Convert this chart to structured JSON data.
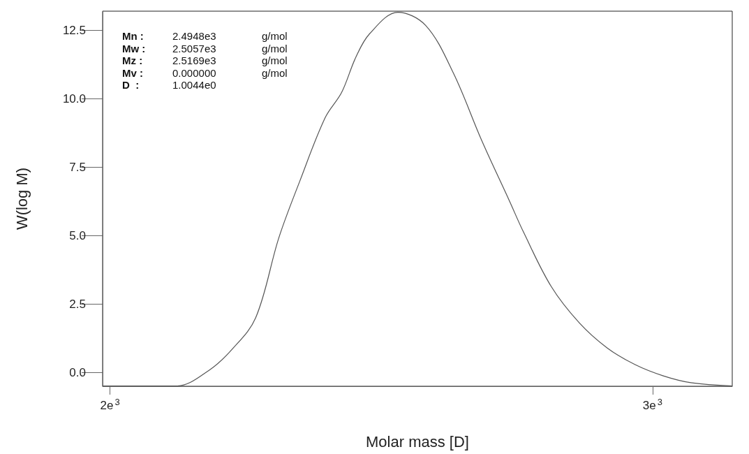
{
  "chart_data": {
    "type": "line",
    "xlabel": "Molar mass [D]",
    "ylabel": "W(log M)",
    "log": "x",
    "x": [
      1989,
      2044,
      2102,
      2154,
      2191,
      2230,
      2269,
      2305,
      2349,
      2378,
      2403,
      2428,
      2480,
      2532,
      2585,
      2640,
      2696,
      2724,
      2781,
      2840,
      2900,
      2961,
      3024,
      3087,
      3184
    ],
    "series": [
      {
        "color": "#555555",
        "values": [
          -0.5,
          -0.5,
          -0.5,
          0.08,
          0.84,
          1.99,
          4.92,
          7.0,
          9.31,
          10.23,
          11.5,
          12.37,
          13.16,
          12.68,
          10.94,
          8.49,
          6.25,
          5.13,
          3.14,
          1.81,
          0.89,
          0.28,
          -0.13,
          -0.38,
          -0.5
        ]
      }
    ],
    "xlim": [
      1989,
      3184
    ],
    "xticks": [
      {
        "value": 2000,
        "label": "2e3"
      },
      {
        "value": 3000,
        "label": "3e3"
      }
    ],
    "ylim": [
      -0.51,
      13.2
    ],
    "yticks": [
      {
        "value": 0,
        "label": "0.0"
      },
      2.5,
      {
        "value": 5,
        "label": "5.0"
      },
      7.5,
      {
        "value": 10,
        "label": "10.0"
      },
      12.5
    ],
    "grid": false,
    "marker": "none",
    "line_style": "solid",
    "annotations": [
      "Mn :\t2.4948e3\tg/mol",
      "Mw :\t2.5057e3\tg/mol",
      "Mz :\t2.5169e3\tg/mol",
      "Mv :\t0.000000\tg/mol",
      "D  :\t1.0044e0"
    ]
  }
}
